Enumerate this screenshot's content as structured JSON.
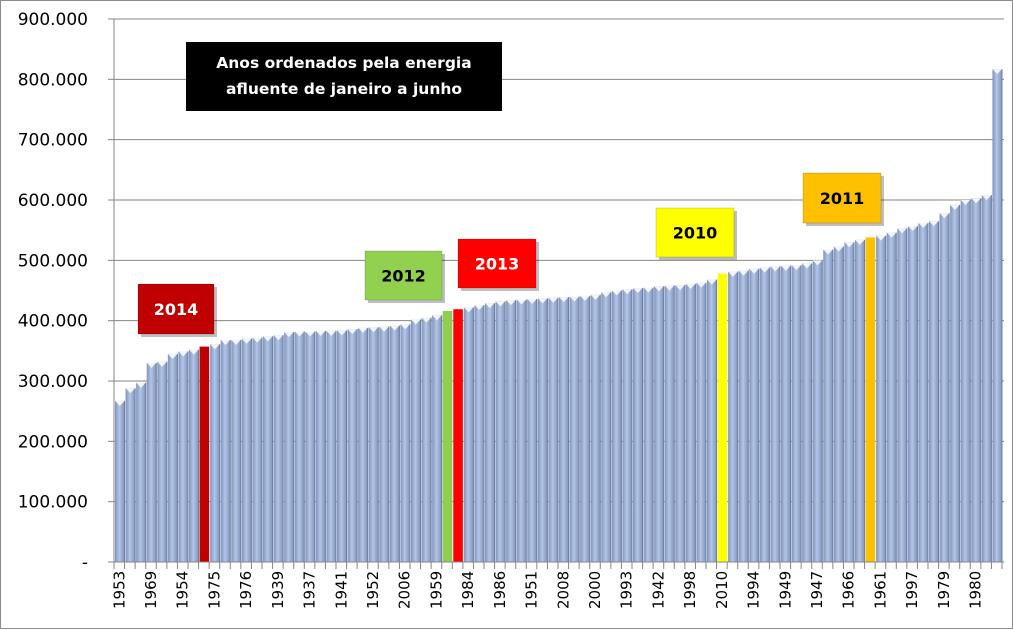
{
  "chart_data": {
    "type": "bar",
    "title": "Anos ordenados  pela energia afluente de janeiro a junho",
    "title_lines": [
      "Anos ordenados  pela energia",
      "afluente de janeiro a junho"
    ],
    "xlabel": "",
    "ylabel": "",
    "ylim": [
      0,
      900000
    ],
    "yticks": [
      0,
      100000,
      200000,
      300000,
      400000,
      500000,
      600000,
      700000,
      800000,
      900000
    ],
    "ytick_labels": [
      "-",
      "100.000",
      "200.000",
      "300.000",
      "400.000",
      "500.000",
      "600.000",
      "700.000",
      "800.000",
      "900.000"
    ],
    "grid": true,
    "bar_color": "#9fb4d8",
    "label_every": 3,
    "visible_x_labels": [
      "1953",
      "1969",
      "1954",
      "1975",
      "1976",
      "1939",
      "1937",
      "1941",
      "1952",
      "2006",
      "1959",
      "1984",
      "1986",
      "1951",
      "2008",
      "2000",
      "1993",
      "1942",
      "1998",
      "2010",
      "1994",
      "1949",
      "1947",
      "1966",
      "1961",
      "1997",
      "1979",
      "1980"
    ],
    "bar_count": 84,
    "values": [
      267000,
      288000,
      297000,
      330000,
      332000,
      345000,
      349000,
      352000,
      357000,
      361000,
      368000,
      368000,
      370000,
      372000,
      374000,
      376000,
      381000,
      382000,
      382000,
      383000,
      383000,
      384000,
      386000,
      388000,
      389000,
      390000,
      392000,
      394000,
      402000,
      405000,
      409000,
      416000,
      419000,
      422000,
      426000,
      429000,
      432000,
      434000,
      435000,
      436000,
      437000,
      438000,
      439000,
      440000,
      441000,
      443000,
      447000,
      450000,
      452000,
      454000,
      455000,
      457000,
      458000,
      459000,
      461000,
      463000,
      468000,
      478000,
      481000,
      483000,
      486000,
      488000,
      490000,
      491000,
      492000,
      495000,
      500000,
      518000,
      523000,
      530000,
      534000,
      538000,
      541000,
      546000,
      553000,
      557000,
      562000,
      565000,
      578000,
      592000,
      600000,
      603000,
      608000,
      817000
    ],
    "highlights": [
      {
        "year": "2014",
        "index": 8,
        "color": "#c00000",
        "badge_bg": "#c00000",
        "badge_text_color": "#ffffff"
      },
      {
        "year": "2012",
        "index": 31,
        "color": "#8fce4f",
        "badge_bg": "#92d050",
        "badge_text_color": "#000000"
      },
      {
        "year": "2013",
        "index": 32,
        "color": "#ff0000",
        "badge_bg": "#ff0000",
        "badge_text_color": "#ffffff"
      },
      {
        "year": "2010",
        "index": 57,
        "color": "#ffff00",
        "badge_bg": "#ffff00",
        "badge_text_color": "#000000"
      },
      {
        "year": "2011",
        "index": 71,
        "color": "#ffc000",
        "badge_bg": "#ffc000",
        "badge_text_color": "#000000"
      }
    ],
    "annotations": [
      "2014",
      "2012",
      "2013",
      "2010",
      "2011"
    ],
    "legend": "none"
  }
}
